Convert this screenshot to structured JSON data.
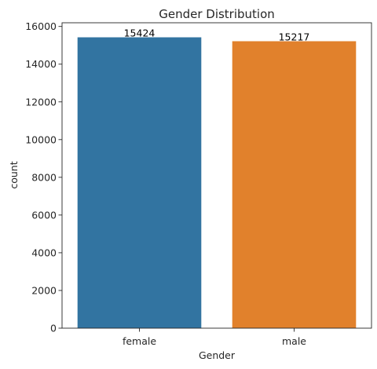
{
  "chart_data": {
    "type": "bar",
    "title": "Gender Distribution",
    "xlabel": "Gender",
    "ylabel": "count",
    "categories": [
      "female",
      "male"
    ],
    "values": [
      15424,
      15217
    ],
    "data_labels": [
      "15424",
      "15217"
    ],
    "colors": [
      "#3274a1",
      "#e1812c"
    ],
    "ylim": [
      0,
      16195
    ],
    "yticks": [
      0,
      2000,
      4000,
      6000,
      8000,
      10000,
      12000,
      14000,
      16000
    ],
    "ytick_labels": [
      "0",
      "2000",
      "4000",
      "6000",
      "8000",
      "10000",
      "12000",
      "14000",
      "16000"
    ],
    "grid": false,
    "legend": "none"
  }
}
